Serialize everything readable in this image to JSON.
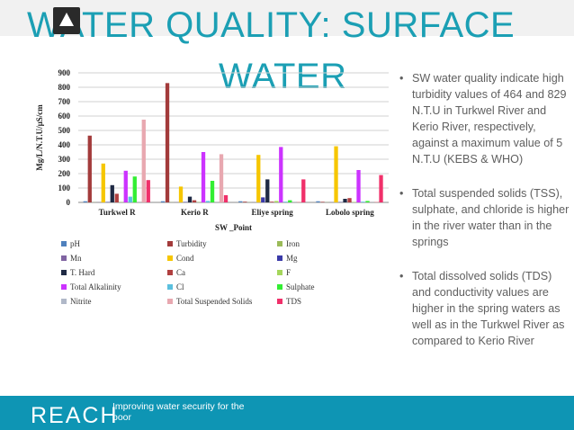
{
  "slide": {
    "title_line1": "WATER QUALITY: SURFACE",
    "title_line2": "WATER"
  },
  "bullets": [
    "SW water quality indicate high turbidity values of 464 and 829 N.T.U  in Turkwel River and Kerio River, respectively, against a maximum value of 5 N.T.U (KEBS & WHO)",
    "Total suspended solids (TSS), sulphate, and chloride is higher in the river water than in the springs",
    "Total dissolved solids (TDS) and conductivity values are higher in the spring waters as well as in the Turkwel River as compared to Kerio River"
  ],
  "bullet_char": "•",
  "footer": {
    "brand": "REACH",
    "tagline": "Improving water security for the poor",
    "color": "#0e95b4"
  },
  "chart_data": {
    "type": "bar",
    "xlabel": "SW _Point",
    "ylabel": "Mg/L/N.T.U/µS/cm",
    "ylim": [
      0,
      900
    ],
    "yticks": [
      0,
      100,
      200,
      300,
      400,
      500,
      600,
      700,
      800,
      900
    ],
    "grid": true,
    "legend_position": "bottom",
    "categories": [
      "Turkwel R",
      "Kerio R",
      "Eliye spring",
      "Lobolo spring"
    ],
    "series": [
      {
        "name": "pH",
        "color": "#4f81bd",
        "values": [
          8,
          8,
          8,
          8
        ]
      },
      {
        "name": "Turbidity",
        "color": "#a33b3b",
        "values": [
          464,
          829,
          5,
          4
        ]
      },
      {
        "name": "Iron",
        "color": "#9bbb59",
        "values": [
          1,
          1,
          1,
          1
        ]
      },
      {
        "name": "Mn",
        "color": "#8064a2",
        "values": [
          1,
          1,
          1,
          1
        ]
      },
      {
        "name": "Cond",
        "color": "#f6c600",
        "values": [
          270,
          110,
          330,
          390
        ]
      },
      {
        "name": "Mg",
        "color": "#3a3aa8",
        "values": [
          3,
          3,
          35,
          2
        ]
      },
      {
        "name": "T. Hard",
        "color": "#1f2a44",
        "values": [
          120,
          40,
          160,
          25
        ]
      },
      {
        "name": "Ca",
        "color": "#b04040",
        "values": [
          60,
          15,
          5,
          30
        ]
      },
      {
        "name": "F",
        "color": "#a5d65c",
        "values": [
          2,
          2,
          10,
          3
        ]
      },
      {
        "name": "Total Alkalinity",
        "color": "#cc33ff",
        "values": [
          220,
          350,
          385,
          225
        ]
      },
      {
        "name": "Cl",
        "color": "#5bc0de",
        "values": [
          40,
          10,
          5,
          5
        ]
      },
      {
        "name": "Sulphate",
        "color": "#33ee33",
        "values": [
          180,
          150,
          15,
          10
        ]
      },
      {
        "name": "Nitrite",
        "color": "#b0b8c8",
        "values": [
          1,
          1,
          1,
          1
        ]
      },
      {
        "name": "Total Suspended Solids",
        "color": "#e8a8b0",
        "values": [
          575,
          335,
          5,
          5
        ]
      },
      {
        "name": "TDS",
        "color": "#f0306a",
        "values": [
          155,
          50,
          160,
          190
        ]
      }
    ]
  }
}
